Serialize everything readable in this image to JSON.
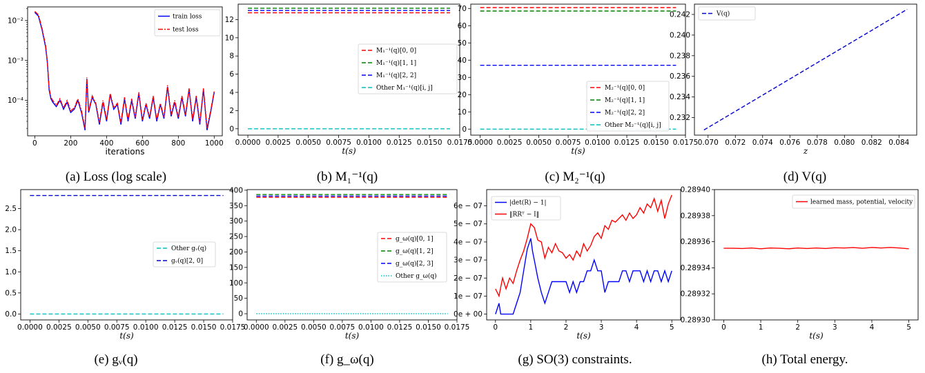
{
  "chart_data": [
    {
      "id": "a",
      "type": "line",
      "caption": "(a) Loss (log scale)",
      "xlabel": "iterations",
      "ylabel": "",
      "xlim": [
        -40,
        1045
      ],
      "ylim": [
        1.3e-05,
        0.022
      ],
      "yscale": "log",
      "xticks": [
        "0",
        "200",
        "400",
        "600",
        "800",
        "1000"
      ],
      "xtick_values": [
        0,
        200,
        400,
        600,
        800,
        1000
      ],
      "yticks": [
        "10⁻²",
        "10⁻³",
        "10⁻⁴"
      ],
      "ytick_values": [
        0.01,
        0.001,
        0.0001
      ],
      "legend_position": "top-right",
      "series": [
        {
          "name": "train loss",
          "color": "#0000ff",
          "style": "solid",
          "x": [
            0,
            20,
            40,
            60,
            70,
            80,
            90,
            100,
            120,
            140,
            150,
            160,
            180,
            200,
            220,
            240,
            260,
            280,
            290,
            300,
            320,
            340,
            360,
            380,
            400,
            420,
            440,
            460,
            480,
            500,
            520,
            540,
            560,
            580,
            600,
            620,
            640,
            660,
            680,
            700,
            720,
            740,
            760,
            780,
            800,
            820,
            840,
            860,
            880,
            900,
            920,
            940,
            960,
            980,
            1000
          ],
          "y": [
            0.016,
            0.013,
            0.006,
            0.0022,
            0.0009,
            0.00018,
            0.00011,
            9e-05,
            7e-05,
            0.0001,
            8e-05,
            6e-05,
            9e-05,
            5e-05,
            6e-05,
            0.0001,
            5e-05,
            1.8e-05,
            0.00035,
            5e-05,
            0.00012,
            8e-05,
            2.5e-05,
            9e-05,
            3e-05,
            0.00014,
            6e-05,
            8e-05,
            2.5e-05,
            0.00011,
            3e-05,
            0.0001,
            3.5e-05,
            0.00015,
            3e-05,
            8e-05,
            3.5e-05,
            0.00012,
            3e-05,
            8e-05,
            3.5e-05,
            0.00022,
            4e-05,
            9e-05,
            3.5e-05,
            0.00012,
            4e-05,
            0.00019,
            3e-05,
            0.00012,
            2.5e-05,
            0.00019,
            1.8e-05,
            5e-05,
            0.00016
          ]
        },
        {
          "name": "test loss",
          "color": "#ff0000",
          "style": "dashdot",
          "x": [
            0,
            20,
            40,
            60,
            70,
            80,
            90,
            100,
            120,
            140,
            150,
            160,
            180,
            200,
            220,
            240,
            260,
            280,
            290,
            300,
            320,
            340,
            360,
            380,
            400,
            420,
            440,
            460,
            480,
            500,
            520,
            540,
            560,
            580,
            600,
            620,
            640,
            660,
            680,
            700,
            720,
            740,
            760,
            780,
            800,
            820,
            840,
            860,
            880,
            900,
            920,
            940,
            960,
            980,
            1000
          ],
          "y": [
            0.017,
            0.014,
            0.0065,
            0.0024,
            0.00095,
            0.0002,
            0.00012,
            0.0001,
            7.5e-05,
            0.00011,
            8.5e-05,
            6.5e-05,
            0.0001,
            5.5e-05,
            6.5e-05,
            0.00011,
            5.5e-05,
            2e-05,
            0.00038,
            5.5e-05,
            0.00013,
            8.5e-05,
            2.8e-05,
            0.0001,
            3.3e-05,
            0.00015,
            6.5e-05,
            8.5e-05,
            2.8e-05,
            0.00012,
            3.3e-05,
            0.00011,
            3.8e-05,
            0.00016,
            3.3e-05,
            8.5e-05,
            3.8e-05,
            0.00013,
            3.3e-05,
            8.5e-05,
            3.8e-05,
            0.00024,
            4.4e-05,
            0.0001,
            3.8e-05,
            0.00013,
            4.4e-05,
            0.0002,
            3.3e-05,
            0.00013,
            2.8e-05,
            0.0002,
            2e-05,
            5.5e-05,
            0.00017
          ]
        }
      ]
    },
    {
      "id": "b",
      "type": "line",
      "caption": "(b) M₁⁻¹(q)",
      "xlabel": "t(s)",
      "ylabel": "",
      "xlim": [
        -0.0008,
        0.0175
      ],
      "ylim": [
        -0.7,
        13.7
      ],
      "xticks": [
        "0.0000",
        "0.0025",
        "0.0050",
        "0.0075",
        "0.0100",
        "0.0125",
        "0.0150",
        "0.0175"
      ],
      "xtick_values": [
        0,
        0.0025,
        0.005,
        0.0075,
        0.01,
        0.0125,
        0.015,
        0.0175
      ],
      "yticks": [
        "0",
        "2",
        "4",
        "6",
        "8",
        "10",
        "12"
      ],
      "ytick_values": [
        0,
        2,
        4,
        6,
        8,
        10,
        12
      ],
      "legend_position": "center-right",
      "series": [
        {
          "name": "M₁⁻¹(q)[0, 0]",
          "color": "#ff0000",
          "style": "dashed",
          "x": [
            0,
            0.0167
          ],
          "y": [
            12.75,
            12.75
          ]
        },
        {
          "name": "M₁⁻¹(q)[1, 1]",
          "color": "#008000",
          "style": "dashed",
          "x": [
            0,
            0.0167
          ],
          "y": [
            13.25,
            13.25
          ]
        },
        {
          "name": "M₁⁻¹(q)[2, 2]",
          "color": "#0000ff",
          "style": "dashed",
          "x": [
            0,
            0.0167
          ],
          "y": [
            13.0,
            13.0
          ]
        },
        {
          "name": "Other M₁⁻¹(q)[i, j]",
          "color": "#00bfbf",
          "style": "dashed",
          "x": [
            0,
            0.0167
          ],
          "y": [
            0.0,
            0.0
          ]
        }
      ]
    },
    {
      "id": "c",
      "type": "line",
      "caption": "(c) M₂⁻¹(q)",
      "xlabel": "t(s)",
      "ylabel": "",
      "xlim": [
        -0.0008,
        0.0175
      ],
      "ylim": [
        -3.5,
        72.5
      ],
      "xticks": [
        "0.0000",
        "0.0025",
        "0.0050",
        "0.0075",
        "0.0100",
        "0.0125",
        "0.0150",
        "0.0175"
      ],
      "xtick_values": [
        0,
        0.0025,
        0.005,
        0.0075,
        0.01,
        0.0125,
        0.015,
        0.0175
      ],
      "yticks": [
        "0",
        "10",
        "20",
        "30",
        "40",
        "50",
        "60",
        "70"
      ],
      "ytick_values": [
        0,
        10,
        20,
        30,
        40,
        50,
        60,
        70
      ],
      "legend_position": "lower-right",
      "series": [
        {
          "name": "M₂⁻¹(q)[0, 0]",
          "color": "#ff0000",
          "style": "dashed",
          "x": [
            0,
            0.0167
          ],
          "y": [
            70.5,
            70.5
          ]
        },
        {
          "name": "M₂⁻¹(q)[1, 1]",
          "color": "#008000",
          "style": "dashed",
          "x": [
            0,
            0.0167
          ],
          "y": [
            68.5,
            68.5
          ]
        },
        {
          "name": "M₂⁻¹(q)[2, 2]",
          "color": "#0000ff",
          "style": "dashed",
          "x": [
            0,
            0.0167
          ],
          "y": [
            37.0,
            37.0
          ]
        },
        {
          "name": "Other M₂⁻¹(q)[i, j]",
          "color": "#00bfbf",
          "style": "dashed",
          "x": [
            0,
            0.0167
          ],
          "y": [
            0.0,
            0.0
          ]
        }
      ]
    },
    {
      "id": "d",
      "type": "line",
      "caption": "(d) V(q)",
      "xlabel": "z",
      "ylabel": "",
      "xlim": [
        0.069,
        0.0853
      ],
      "ylim": [
        0.2303,
        0.243
      ],
      "xticks": [
        "0.070",
        "0.072",
        "0.074",
        "0.076",
        "0.078",
        "0.080",
        "0.082",
        "0.084"
      ],
      "xtick_values": [
        0.07,
        0.072,
        0.074,
        0.076,
        0.078,
        0.08,
        0.082,
        0.084
      ],
      "yticks": [
        "0.232",
        "0.234",
        "0.236",
        "0.238",
        "0.240",
        "0.242"
      ],
      "ytick_values": [
        0.232,
        0.234,
        0.236,
        0.238,
        0.24,
        0.242
      ],
      "legend_position": "top-left",
      "series": [
        {
          "name": "V(q)",
          "color": "#0000cc",
          "style": "dashed",
          "x": [
            0.0697,
            0.0846
          ],
          "y": [
            0.2308,
            0.2425
          ]
        }
      ]
    },
    {
      "id": "e",
      "type": "line",
      "caption": "(e) gᵥ(q)",
      "xlabel": "t(s)",
      "ylabel": "",
      "xlim": [
        -0.0008,
        0.0175
      ],
      "ylim": [
        -0.14,
        2.95
      ],
      "xticks": [
        "0.0000",
        "0.0025",
        "0.0050",
        "0.0075",
        "0.0100",
        "0.0125",
        "0.0150",
        "0.0175"
      ],
      "xtick_values": [
        0,
        0.0025,
        0.005,
        0.0075,
        0.01,
        0.0125,
        0.015,
        0.0175
      ],
      "yticks": [
        "0.0",
        "0.5",
        "1.0",
        "1.5",
        "2.0",
        "2.5"
      ],
      "ytick_values": [
        0,
        0.5,
        1,
        1.5,
        2,
        2.5
      ],
      "legend_position": "center-right",
      "series": [
        {
          "name": "Other gᵥ(q)",
          "color": "#00bfbf",
          "style": "dashed",
          "x": [
            0,
            0.0167
          ],
          "y": [
            0.0,
            0.0
          ]
        },
        {
          "name": "gᵥ(q)[2, 0]",
          "color": "#0000cc",
          "style": "dashed",
          "x": [
            0,
            0.0167
          ],
          "y": [
            2.81,
            2.81
          ]
        }
      ]
    },
    {
      "id": "f",
      "type": "line",
      "caption": "(f) g_ω(q)",
      "xlabel": "t(s)",
      "ylabel": "",
      "xlim": [
        -0.0008,
        0.0175
      ],
      "ylim": [
        -20,
        402
      ],
      "xticks": [
        "0.0000",
        "0.0025",
        "0.0050",
        "0.0075",
        "0.0100",
        "0.0125",
        "0.0150",
        "0.0175"
      ],
      "xtick_values": [
        0,
        0.0025,
        0.005,
        0.0075,
        0.01,
        0.0125,
        0.015,
        0.0175
      ],
      "yticks": [
        "0",
        "50",
        "100",
        "150",
        "200",
        "250",
        "300",
        "350",
        "400"
      ],
      "ytick_values": [
        0,
        50,
        100,
        150,
        200,
        250,
        300,
        350,
        400
      ],
      "legend_position": "center-right",
      "series": [
        {
          "name": "g_ω(q)[0, 1]",
          "color": "#ff0000",
          "style": "dashed",
          "x": [
            0,
            0.0167
          ],
          "y": [
            377,
            377
          ]
        },
        {
          "name": "g_ω(q)[1, 2]",
          "color": "#008000",
          "style": "dashed",
          "x": [
            0,
            0.0167
          ],
          "y": [
            386,
            386
          ]
        },
        {
          "name": "g_ω(q)[2, 3]",
          "color": "#0000ff",
          "style": "dashed",
          "x": [
            0,
            0.0167
          ],
          "y": [
            381,
            381
          ]
        },
        {
          "name": "Other g_ω(q)",
          "color": "#00bfbf",
          "style": "dotted",
          "x": [
            0,
            0.0167
          ],
          "y": [
            0,
            0
          ]
        }
      ]
    },
    {
      "id": "g",
      "type": "line",
      "caption": "(g) SO(3) constraints.",
      "xlabel": "t(s)",
      "ylabel": "",
      "xlim": [
        -0.25,
        5.25
      ],
      "ylim": [
        -3.2e-08,
        6.9e-07
      ],
      "xticks": [
        "0",
        "1",
        "2",
        "3",
        "4",
        "5"
      ],
      "xtick_values": [
        0,
        1,
        2,
        3,
        4,
        5
      ],
      "yticks": [
        "0e + 00",
        "1e − 07",
        "2e − 07",
        "3e − 07",
        "4e − 07",
        "5e − 07",
        "6e − 07"
      ],
      "ytick_values": [
        0,
        1e-07,
        2e-07,
        3e-07,
        4e-07,
        5e-07,
        6e-07
      ],
      "legend_position": "top-left",
      "series": [
        {
          "name": "|det(R) − 1|",
          "color": "#0000ff",
          "style": "solid",
          "x": [
            0,
            0.1,
            0.15,
            0.2,
            0.3,
            0.5,
            0.6,
            0.7,
            0.8,
            0.9,
            1.0,
            1.05,
            1.1,
            1.2,
            1.3,
            1.4,
            1.5,
            1.6,
            2.0,
            2.1,
            2.2,
            2.3,
            2.4,
            2.5,
            2.6,
            2.7,
            2.8,
            2.9,
            3.0,
            3.1,
            3.2,
            3.3,
            3.5,
            3.6,
            3.7,
            3.8,
            3.9,
            4.0,
            4.1,
            4.2,
            4.3,
            4.4,
            4.5,
            4.6,
            4.7,
            4.8,
            4.9,
            5.0
          ],
          "y": [
            0,
            6e-08,
            0,
            0,
            0,
            0,
            6e-08,
            1.2e-07,
            2.4e-07,
            3.6e-07,
            4.2e-07,
            3.5e-07,
            3e-07,
            2e-07,
            1.2e-07,
            6e-08,
            1.2e-07,
            1.8e-07,
            1.8e-07,
            1.2e-07,
            1.8e-07,
            1.2e-07,
            1.8e-07,
            1.8e-07,
            2.4e-07,
            2.4e-07,
            3e-07,
            2.4e-07,
            2.4e-07,
            1.2e-07,
            1.8e-07,
            1.8e-07,
            1.8e-07,
            2.4e-07,
            2.4e-07,
            1.8e-07,
            2.4e-07,
            2.4e-07,
            2.4e-07,
            1.8e-07,
            2.4e-07,
            1.8e-07,
            2.4e-07,
            2.4e-07,
            1.8e-07,
            2.4e-07,
            1.8e-07,
            2.4e-07
          ]
        },
        {
          "name": "‖RRᵀ − I‖",
          "color": "#ff0000",
          "style": "solid",
          "x": [
            0,
            0.1,
            0.2,
            0.3,
            0.4,
            0.5,
            0.6,
            0.7,
            0.8,
            0.9,
            1.0,
            1.1,
            1.2,
            1.3,
            1.4,
            1.5,
            1.6,
            1.7,
            1.8,
            1.9,
            2.0,
            2.1,
            2.2,
            2.3,
            2.4,
            2.5,
            2.6,
            2.7,
            2.8,
            2.9,
            3.0,
            3.1,
            3.2,
            3.3,
            3.4,
            3.5,
            3.6,
            3.7,
            3.8,
            3.9,
            4.0,
            4.1,
            4.2,
            4.3,
            4.4,
            4.5,
            4.6,
            4.7,
            4.8,
            4.9,
            5.0
          ],
          "y": [
            1.4e-07,
            1e-07,
            2e-07,
            1.4e-07,
            2e-07,
            1.7e-07,
            2.4e-07,
            3e-07,
            3.5e-07,
            4.2e-07,
            5e-07,
            4.8e-07,
            4.1e-07,
            4e-07,
            3.1e-07,
            3.7e-07,
            3.4e-07,
            3.9e-07,
            3.5e-07,
            3.4e-07,
            3.1e-07,
            3.3e-07,
            3e-07,
            3.5e-07,
            3.2e-07,
            3.9e-07,
            3.5e-07,
            3.8e-07,
            4.3e-07,
            4.5e-07,
            4.2e-07,
            4.9e-07,
            4.7e-07,
            5.2e-07,
            5.1e-07,
            5.3e-07,
            5.5e-07,
            5.2e-07,
            5.6e-07,
            5.3e-07,
            5.5e-07,
            5.9e-07,
            5.6e-07,
            6.1e-07,
            5.9e-07,
            6.4e-07,
            5.7e-07,
            6.3e-07,
            5.3e-07,
            6.1e-07,
            6.6e-07
          ]
        }
      ]
    },
    {
      "id": "h",
      "type": "line",
      "caption": "(h) Total energy.",
      "xlabel": "t(s)",
      "ylabel": "",
      "xlim": [
        -0.25,
        5.25
      ],
      "ylim": [
        0.2893,
        0.2894
      ],
      "xticks": [
        "0",
        "1",
        "2",
        "3",
        "4",
        "5"
      ],
      "xtick_values": [
        0,
        1,
        2,
        3,
        4,
        5
      ],
      "yticks": [
        "0.28930",
        "0.28932",
        "0.28934",
        "0.28936",
        "0.28938",
        "0.28940"
      ],
      "ytick_values": [
        0.2893,
        0.28932,
        0.28934,
        0.28936,
        0.28938,
        0.2894
      ],
      "legend_position": "top-right",
      "series": [
        {
          "name": "learned mass, potential, velocity",
          "color": "#ff0000",
          "style": "solid",
          "x": [
            0,
            0.25,
            0.5,
            0.75,
            1.0,
            1.25,
            1.5,
            1.75,
            2.0,
            2.25,
            2.5,
            2.75,
            3.0,
            3.25,
            3.5,
            3.75,
            4.0,
            4.25,
            4.5,
            4.75,
            5.0
          ],
          "y": [
            0.289355,
            0.289355,
            0.2893548,
            0.2893552,
            0.2893546,
            0.2893552,
            0.289355,
            0.2893546,
            0.2893552,
            0.2893548,
            0.2893552,
            0.2893548,
            0.2893554,
            0.2893552,
            0.2893555,
            0.289355,
            0.2893556,
            0.2893552,
            0.2893556,
            0.2893552,
            0.2893546
          ]
        }
      ]
    }
  ]
}
